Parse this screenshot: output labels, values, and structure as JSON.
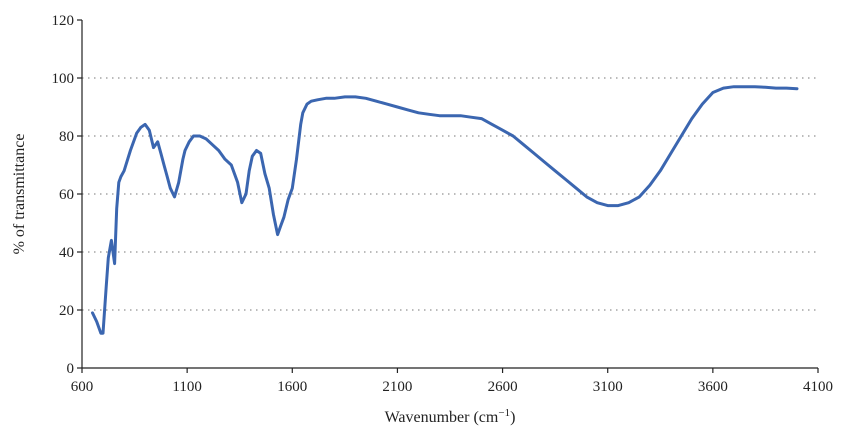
{
  "chart_data": {
    "type": "line",
    "title": "",
    "xlabel": "Wavenumber (cm",
    "xlabel_sup": "−1",
    "xlabel_suffix": ")",
    "ylabel": "% of transmittance",
    "xlim": [
      600,
      4100
    ],
    "ylim": [
      0,
      120
    ],
    "xticks": [
      600,
      1100,
      1600,
      2100,
      2600,
      3100,
      3600,
      4100
    ],
    "yticks": [
      0,
      20,
      40,
      60,
      80,
      100,
      120
    ],
    "grid": "horizontal-dotted",
    "legend": "none",
    "series": [
      {
        "color": "#3b66b0",
        "x": [
          650,
          670,
          690,
          700,
          715,
          725,
          740,
          755,
          765,
          775,
          785,
          800,
          830,
          860,
          880,
          900,
          920,
          940,
          960,
          975,
          990,
          1005,
          1020,
          1040,
          1060,
          1080,
          1090,
          1110,
          1130,
          1160,
          1190,
          1220,
          1250,
          1280,
          1310,
          1340,
          1360,
          1380,
          1395,
          1410,
          1430,
          1450,
          1470,
          1490,
          1510,
          1530,
          1545,
          1560,
          1570,
          1580,
          1600,
          1620,
          1640,
          1650,
          1670,
          1690,
          1720,
          1760,
          1800,
          1850,
          1900,
          1950,
          2000,
          2050,
          2100,
          2150,
          2200,
          2250,
          2300,
          2350,
          2400,
          2450,
          2500,
          2550,
          2600,
          2650,
          2700,
          2750,
          2800,
          2850,
          2900,
          2950,
          3000,
          3050,
          3100,
          3150,
          3200,
          3250,
          3300,
          3350,
          3400,
          3450,
          3500,
          3550,
          3600,
          3650,
          3700,
          3750,
          3800,
          3850,
          3900,
          3950,
          4000
        ],
        "y": [
          19,
          16,
          12,
          12,
          28,
          38,
          44,
          36,
          55,
          64,
          66,
          68,
          75,
          81,
          83,
          84,
          82,
          76,
          78,
          74,
          70,
          66,
          62,
          59,
          64,
          72,
          75,
          78,
          80,
          80,
          79,
          77,
          75,
          72,
          70,
          64,
          57,
          60,
          68,
          73,
          75,
          74,
          67,
          62,
          53,
          46,
          49,
          52,
          55,
          58,
          62,
          72,
          84,
          88,
          91,
          92,
          92.5,
          93,
          93,
          93.5,
          93.5,
          93,
          92,
          91,
          90,
          89,
          88,
          87.5,
          87,
          87,
          87,
          86.5,
          86,
          84,
          82,
          80,
          77,
          74,
          71,
          68,
          65,
          62,
          59,
          57,
          56,
          56,
          57,
          59,
          63,
          68,
          74,
          80,
          86,
          91,
          95,
          96.5,
          97,
          97,
          97,
          96.8,
          96.5,
          96.5,
          96.3
        ]
      }
    ]
  }
}
